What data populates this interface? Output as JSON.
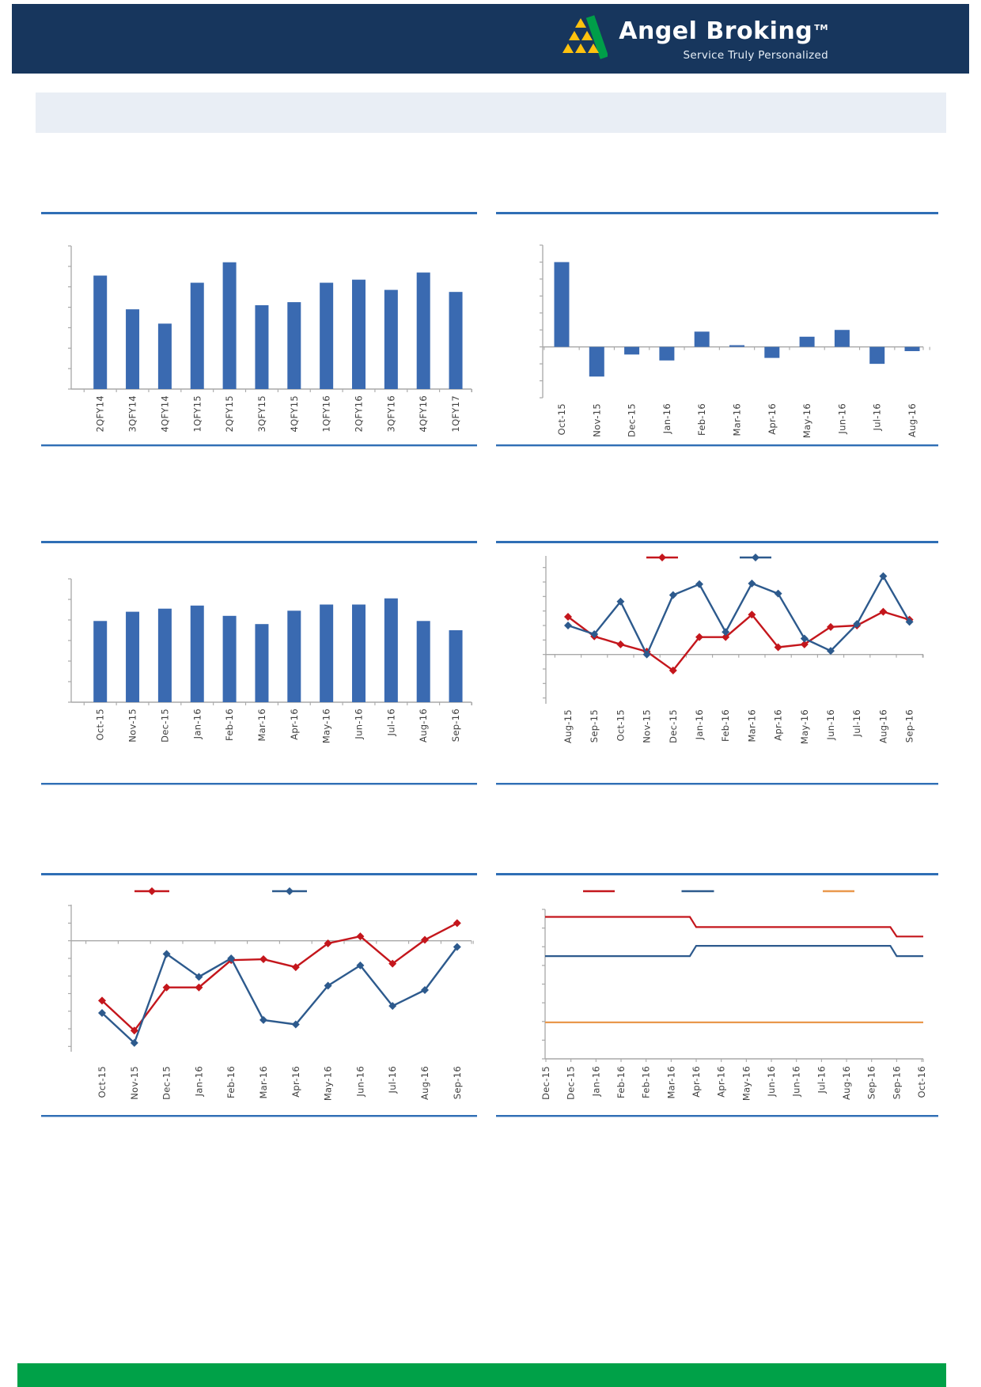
{
  "header": {
    "brand": "Angel Broking",
    "tm": "TM",
    "tagline": "Service Truly Personalized"
  },
  "colors": {
    "header_bg": "#17365d",
    "logo_green": "#009e49",
    "logo_yellow": "#ffc20e",
    "banner_bg": "#e9eef5",
    "footer_green": "#00a148",
    "rule_blue": "#2f6eb5",
    "axis_gray": "#a8a8a8",
    "label_gray": "#404040",
    "bar_blue": "#3a6ab1",
    "line_red": "#c4161c",
    "line_blue": "#2d5a8d",
    "line_orange": "#e9984d"
  },
  "chart_data": [
    {
      "id": "quarterly-bar",
      "position": "top-left",
      "type": "bar",
      "title": "",
      "categories": [
        "2QFY14",
        "3QFY14",
        "4QFY14",
        "1QFY15",
        "2QFY15",
        "3QFY15",
        "4QFY15",
        "1QFY16",
        "2QFY16",
        "3QFY16",
        "4QFY16",
        "1QFY17"
      ],
      "values": [
        5.55,
        3.9,
        3.2,
        5.2,
        6.2,
        4.1,
        4.25,
        5.2,
        5.35,
        4.85,
        5.7,
        4.75
      ],
      "ylim": [
        0,
        7
      ],
      "y_tick_labels": "none",
      "grid": false
    },
    {
      "id": "monthly-change-bar",
      "position": "top-right",
      "type": "bar",
      "title": "",
      "categories": [
        "Oct-15",
        "Nov-15",
        "Dec-15",
        "Jan-16",
        "Feb-16",
        "Mar-16",
        "Apr-16",
        "May-16",
        "Jun-16",
        "Jul-16",
        "Aug-16"
      ],
      "values": [
        5.0,
        -1.75,
        -0.45,
        -0.8,
        0.9,
        0.1,
        -0.65,
        0.6,
        1.0,
        -1.0,
        -0.25
      ],
      "ylim": [
        -3,
        6
      ],
      "y_tick_labels": "none",
      "grid": false
    },
    {
      "id": "monthly-level-bar",
      "position": "middle-left",
      "type": "bar",
      "title": "",
      "categories": [
        "Oct-15",
        "Nov-15",
        "Dec-15",
        "Jan-16",
        "Feb-16",
        "Mar-16",
        "Apr-16",
        "May-16",
        "Jun-16",
        "Jul-16",
        "Aug-16",
        "Sep-16"
      ],
      "values": [
        3.95,
        4.4,
        4.55,
        4.7,
        4.2,
        3.8,
        4.45,
        4.75,
        4.75,
        5.05,
        3.95,
        3.5
      ],
      "ylim": [
        0,
        6
      ],
      "y_tick_labels": "none",
      "grid": false
    },
    {
      "id": "two-series-line-a",
      "position": "middle-right",
      "type": "line",
      "title": "",
      "categories": [
        "Aug-15",
        "Sep-15",
        "Oct-15",
        "Nov-15",
        "Dec-15",
        "Jan-16",
        "Feb-16",
        "Mar-16",
        "Apr-16",
        "May-16",
        "Jun-16",
        "Jul-16",
        "Aug-16",
        "Sep-16"
      ],
      "series": [
        {
          "name": "series-red",
          "color": "#c4161c",
          "marker": "diamond",
          "values": [
            2.6,
            1.25,
            0.7,
            0.2,
            -1.1,
            1.2,
            1.2,
            2.75,
            0.5,
            0.7,
            1.9,
            2.0,
            2.95,
            2.4
          ]
        },
        {
          "name": "series-blue",
          "color": "#2d5a8d",
          "marker": "diamond",
          "values": [
            2.0,
            1.4,
            3.65,
            0.0,
            4.1,
            4.85,
            1.55,
            4.9,
            4.2,
            1.1,
            0.25,
            2.1,
            5.4,
            2.25
          ]
        }
      ],
      "ylim": [
        -3.4,
        6.8
      ],
      "y_tick_labels": "none",
      "legend": {
        "position": "top",
        "labels": [
          "",
          ""
        ]
      },
      "grid": false
    },
    {
      "id": "two-series-line-b",
      "position": "bottom-left",
      "type": "line",
      "title": "",
      "categories": [
        "Oct-15",
        "Nov-15",
        "Dec-15",
        "Jan-16",
        "Feb-16",
        "Mar-16",
        "Apr-16",
        "May-16",
        "Jun-16",
        "Jul-16",
        "Aug-16",
        "Sep-16"
      ],
      "series": [
        {
          "name": "series-red",
          "color": "#c4161c",
          "marker": "diamond",
          "values": [
            -3.4,
            -5.1,
            -2.65,
            -2.65,
            -1.1,
            -1.05,
            -1.5,
            -0.15,
            0.25,
            -1.3,
            0.05,
            1.0
          ]
        },
        {
          "name": "series-blue",
          "color": "#2d5a8d",
          "marker": "diamond",
          "values": [
            -4.1,
            -5.8,
            -0.75,
            -2.05,
            -1.0,
            -4.5,
            -4.75,
            -2.55,
            -1.4,
            -3.7,
            -2.8,
            -0.35
          ]
        }
      ],
      "ylim": [
        -6.3,
        2.05
      ],
      "y_tick_labels": "none",
      "legend": {
        "position": "top",
        "labels": [
          "",
          ""
        ]
      },
      "grid": false
    },
    {
      "id": "three-series-step-line",
      "position": "bottom-right",
      "type": "line",
      "style": "step",
      "title": "",
      "categories": [
        "Dec-15",
        "Dec-15",
        "Jan-16",
        "Feb-16",
        "Feb-16",
        "Mar-16",
        "Apr-16",
        "Apr-16",
        "May-16",
        "Jun-16",
        "Jun-16",
        "Jul-16",
        "Aug-16",
        "Sep-16",
        "Sep-16",
        "Oct-16"
      ],
      "series": [
        {
          "name": "series-red",
          "color": "#c4161c",
          "marker": "none",
          "values": [
            7.6,
            7.6,
            7.6,
            7.6,
            7.6,
            7.6,
            7.05,
            7.05,
            7.05,
            7.05,
            7.05,
            7.05,
            7.05,
            7.05,
            6.55,
            6.55
          ]
        },
        {
          "name": "series-blue",
          "color": "#2d5a8d",
          "marker": "none",
          "values": [
            5.5,
            5.5,
            5.5,
            5.5,
            5.5,
            5.5,
            6.05,
            6.05,
            6.05,
            6.05,
            6.05,
            6.05,
            6.05,
            6.05,
            5.5,
            5.5
          ]
        },
        {
          "name": "series-orange",
          "color": "#e9984d",
          "marker": "none",
          "values": [
            1.95,
            1.95,
            1.95,
            1.95,
            1.95,
            1.95,
            1.95,
            1.95,
            1.95,
            1.95,
            1.95,
            1.95,
            1.95,
            1.95,
            1.95,
            1.95
          ]
        }
      ],
      "ylim": [
        0,
        8
      ],
      "y_tick_labels": "none",
      "legend": {
        "position": "top",
        "labels": [
          "",
          "",
          ""
        ]
      },
      "grid": false
    }
  ]
}
